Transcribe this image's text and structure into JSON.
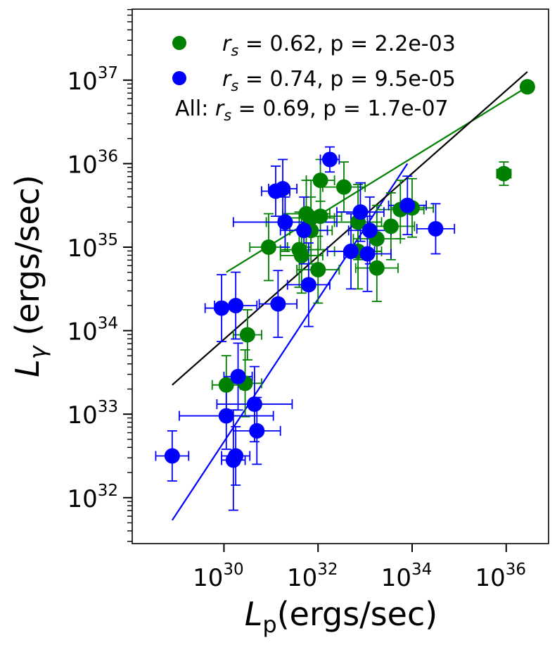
{
  "chart_data": {
    "type": "scatter",
    "xlabel": {
      "main": "L",
      "sub": "p",
      "unit": "(ergs/sec)"
    },
    "ylabel": {
      "main": "L",
      "sub": "γ",
      "unit": "(ergs/sec)"
    },
    "xscale": "log",
    "yscale": "log",
    "xlim_log10": [
      28.05,
      36.9
    ],
    "ylim_log10": [
      31.45,
      37.85
    ],
    "x_ticks": [
      {
        "base": "10",
        "exp": "30",
        "log": 30
      },
      {
        "base": "10",
        "exp": "32",
        "log": 32
      },
      {
        "base": "10",
        "exp": "34",
        "log": 34
      },
      {
        "base": "10",
        "exp": "36",
        "log": 36
      }
    ],
    "y_ticks": [
      {
        "base": "10",
        "exp": "32",
        "log": 32
      },
      {
        "base": "10",
        "exp": "33",
        "log": 33
      },
      {
        "base": "10",
        "exp": "34",
        "log": 34
      },
      {
        "base": "10",
        "exp": "35",
        "log": 35
      },
      {
        "base": "10",
        "exp": "36",
        "log": 36
      },
      {
        "base": "10",
        "exp": "37",
        "log": 37
      }
    ],
    "legend": {
      "position": "top",
      "entries": [
        {
          "series": "green",
          "prefix": "",
          "text": " = 0.62, p = 2.2e-03",
          "marker": true
        },
        {
          "series": "blue",
          "prefix": "",
          "text": " = 0.74, p = 9.5e-05",
          "marker": true
        },
        {
          "series": "all",
          "prefix": "All: ",
          "text": " = 0.69, p = 1.7e-07",
          "marker": false
        }
      ],
      "stat_symbol": "r",
      "stat_sub": "s"
    },
    "series": [
      {
        "name": "green",
        "color": "#008000",
        "fit": {
          "x": [
            30.05,
            36.45
          ],
          "y": [
            34.7,
            36.92
          ]
        },
        "points": [
          {
            "x": 36.45,
            "y": 36.92,
            "xerr": 0.12,
            "yerr": 0.06
          },
          {
            "x": 35.95,
            "y": 35.88,
            "xerr": 0.15,
            "yerr": 0.14
          },
          {
            "x": 32.05,
            "y": 35.8,
            "xerr": 0.3,
            "yerr": 0.25
          },
          {
            "x": 32.55,
            "y": 35.72,
            "xerr": 0.45,
            "yerr": 0.3
          },
          {
            "x": 31.75,
            "y": 35.4,
            "xerr": 0.5,
            "yerr": 0.4
          },
          {
            "x": 31.85,
            "y": 35.35,
            "xerr": 0.5,
            "yerr": 0.45
          },
          {
            "x": 32.05,
            "y": 35.37,
            "xerr": 0.45,
            "yerr": 0.4
          },
          {
            "x": 31.3,
            "y": 35.3,
            "xerr": 0.4,
            "yerr": 0.35
          },
          {
            "x": 31.85,
            "y": 35.2,
            "xerr": 0.45,
            "yerr": 0.4
          },
          {
            "x": 32.85,
            "y": 35.3,
            "xerr": 0.5,
            "yerr": 0.45
          },
          {
            "x": 33.75,
            "y": 35.45,
            "xerr": 0.5,
            "yerr": 0.35
          },
          {
            "x": 33.55,
            "y": 35.25,
            "xerr": 0.5,
            "yerr": 0.4
          },
          {
            "x": 34.0,
            "y": 35.47,
            "xerr": 0.45,
            "yerr": 0.35
          },
          {
            "x": 30.95,
            "y": 35.0,
            "xerr": 0.4,
            "yerr": 0.4
          },
          {
            "x": 31.6,
            "y": 34.97,
            "xerr": 0.4,
            "yerr": 0.45
          },
          {
            "x": 31.65,
            "y": 34.9,
            "xerr": 0.45,
            "yerr": 0.45
          },
          {
            "x": 33.25,
            "y": 35.1,
            "xerr": 0.5,
            "yerr": 0.4
          },
          {
            "x": 32.85,
            "y": 34.95,
            "xerr": 0.5,
            "yerr": 0.45
          },
          {
            "x": 32.0,
            "y": 34.73,
            "xerr": 0.45,
            "yerr": 0.4
          },
          {
            "x": 33.25,
            "y": 34.75,
            "xerr": 0.45,
            "yerr": 0.4
          },
          {
            "x": 30.5,
            "y": 33.95,
            "xerr": 0.3,
            "yerr": 0.3
          },
          {
            "x": 30.05,
            "y": 33.35,
            "xerr": 0.3,
            "yerr": 0.35
          },
          {
            "x": 30.45,
            "y": 33.37,
            "xerr": 0.35,
            "yerr": 0.4
          }
        ]
      },
      {
        "name": "blue",
        "color": "#0000ff",
        "fit": {
          "x": [
            28.9,
            33.9
          ],
          "y": [
            31.73,
            36.0
          ]
        },
        "points": [
          {
            "x": 32.25,
            "y": 36.05,
            "xerr": 0.2,
            "yerr": 0.15
          },
          {
            "x": 31.1,
            "y": 35.67,
            "xerr": 0.3,
            "yerr": 0.3
          },
          {
            "x": 31.25,
            "y": 35.7,
            "xerr": 0.3,
            "yerr": 0.35
          },
          {
            "x": 31.3,
            "y": 35.3,
            "xerr": 1.1,
            "yerr": 0.3
          },
          {
            "x": 31.7,
            "y": 35.2,
            "xerr": 0.5,
            "yerr": 0.4
          },
          {
            "x": 32.9,
            "y": 35.42,
            "xerr": 0.5,
            "yerr": 0.35
          },
          {
            "x": 33.1,
            "y": 35.2,
            "xerr": 0.45,
            "yerr": 0.4
          },
          {
            "x": 33.05,
            "y": 34.92,
            "xerr": 0.5,
            "yerr": 0.45
          },
          {
            "x": 32.7,
            "y": 34.95,
            "xerr": 0.5,
            "yerr": 0.45
          },
          {
            "x": 33.9,
            "y": 35.5,
            "xerr": 0.4,
            "yerr": 0.35
          },
          {
            "x": 34.5,
            "y": 35.22,
            "xerr": 0.4,
            "yerr": 0.3
          },
          {
            "x": 31.8,
            "y": 34.55,
            "xerr": 0.45,
            "yerr": 0.5
          },
          {
            "x": 29.95,
            "y": 34.27,
            "xerr": 0.35,
            "yerr": 0.4
          },
          {
            "x": 30.25,
            "y": 34.3,
            "xerr": 0.45,
            "yerr": 0.4
          },
          {
            "x": 31.15,
            "y": 34.32,
            "xerr": 0.4,
            "yerr": 0.4
          },
          {
            "x": 30.3,
            "y": 33.45,
            "xerr": 0.3,
            "yerr": 0.4
          },
          {
            "x": 30.65,
            "y": 33.12,
            "xerr": 0.8,
            "yerr": 0.45
          },
          {
            "x": 30.05,
            "y": 32.98,
            "xerr": 1.0,
            "yerr": 0.4
          },
          {
            "x": 30.7,
            "y": 32.8,
            "xerr": 0.5,
            "yerr": 0.4
          },
          {
            "x": 28.9,
            "y": 32.5,
            "xerr": 0.35,
            "yerr": 0.3
          },
          {
            "x": 30.2,
            "y": 32.45,
            "xerr": 0.25,
            "yerr": 0.6
          },
          {
            "x": 30.25,
            "y": 32.5,
            "xerr": 0.3,
            "yerr": 0.35
          }
        ]
      },
      {
        "name": "all",
        "color": "#000000",
        "fit": {
          "x": [
            28.9,
            36.45
          ],
          "y": [
            33.35,
            37.1
          ]
        },
        "points": []
      }
    ]
  }
}
